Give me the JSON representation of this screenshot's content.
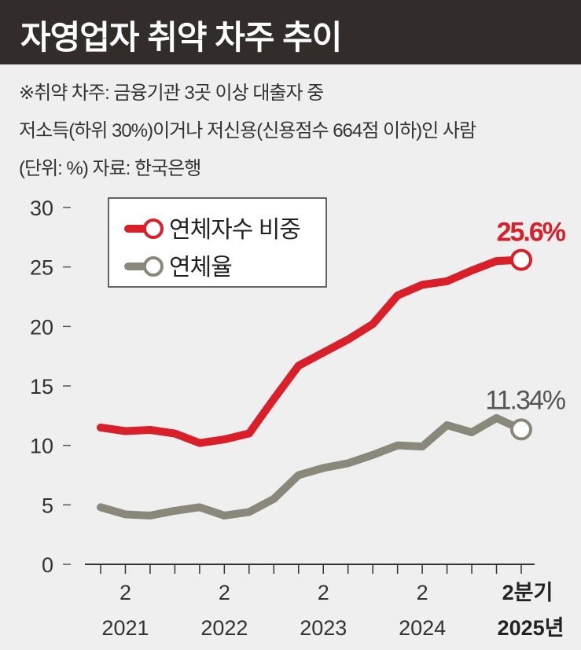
{
  "header": {
    "title": "자영업자 취약 차주 추이"
  },
  "notes": {
    "line1": "※취약 차주: 금융기관 3곳 이상 대출자 중",
    "line2": "저소득(하위 30%)이거나 저신용(신용점수 664점 이하)인 사람",
    "line3": "(단위: %)  자료: 한국은행"
  },
  "chart_data": {
    "type": "line",
    "title": "자영업자 취약 차주 추이",
    "ylabel": "%",
    "ylim": [
      0,
      30
    ],
    "yticks": [
      "0",
      "5",
      "10",
      "15",
      "20",
      "25",
      "30"
    ],
    "x": [
      "2021Q1",
      "2021Q2",
      "2021Q3",
      "2021Q4",
      "2022Q1",
      "2022Q2",
      "2022Q3",
      "2022Q4",
      "2023Q1",
      "2023Q2",
      "2023Q3",
      "2023Q4",
      "2024Q1",
      "2024Q2",
      "2024Q3",
      "2024Q4",
      "2025Q1",
      "2025Q2"
    ],
    "xlabels": [
      {
        "index": 1,
        "q": "2",
        "year": "2021"
      },
      {
        "index": 5,
        "q": "2",
        "year": "2022"
      },
      {
        "index": 9,
        "q": "2",
        "year": "2023"
      },
      {
        "index": 13,
        "q": "2",
        "year": "2024"
      },
      {
        "index": 17,
        "q": "2분기",
        "year": "2025년",
        "bold": true
      }
    ],
    "legend_placement": "top-left",
    "series": [
      {
        "name": "연체자수 비중",
        "color": "#d9202a",
        "end_label": "25.6%",
        "values": [
          11.5,
          11.2,
          11.3,
          11.0,
          10.2,
          10.5,
          11.0,
          13.9,
          16.7,
          17.8,
          18.9,
          20.2,
          22.6,
          23.5,
          23.8,
          24.7,
          25.5,
          25.6
        ]
      },
      {
        "name": "연체율",
        "color": "#8a887a",
        "end_label": "11.34%",
        "values": [
          4.8,
          4.2,
          4.1,
          4.5,
          4.8,
          4.1,
          4.4,
          5.5,
          7.5,
          8.1,
          8.5,
          9.2,
          10.0,
          9.9,
          11.7,
          11.1,
          12.3,
          11.34
        ]
      }
    ]
  }
}
